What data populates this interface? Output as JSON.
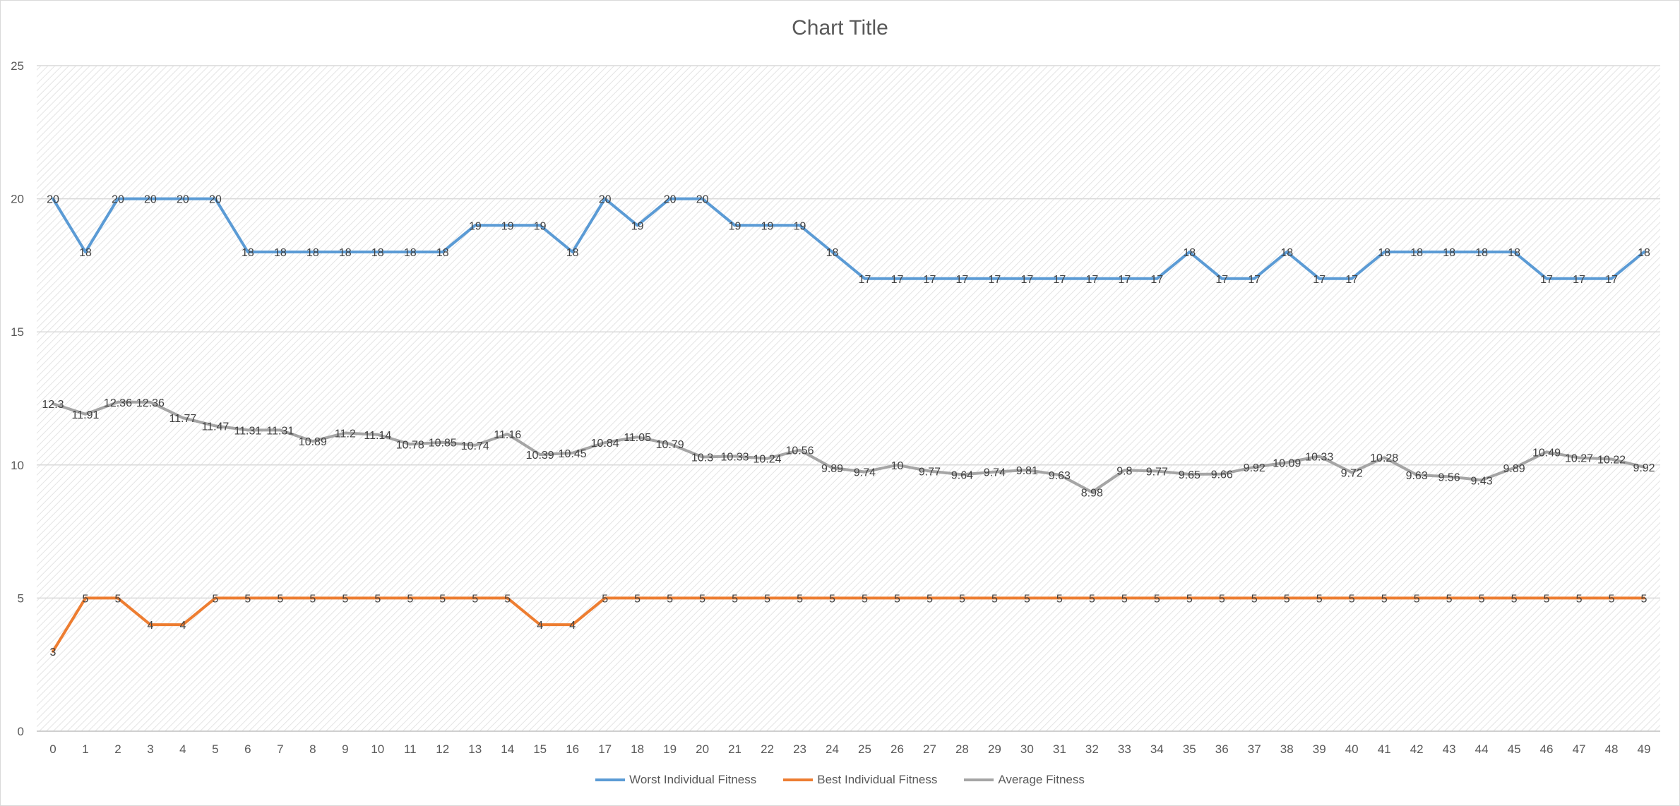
{
  "chart_data": {
    "type": "line",
    "title": "Chart Title",
    "xlabel": "",
    "ylabel": "",
    "ylim": [
      0,
      25
    ],
    "yticks": [
      0,
      5,
      10,
      15,
      20,
      25
    ],
    "grid": true,
    "legend_position": "bottom",
    "x": [
      0,
      1,
      2,
      3,
      4,
      5,
      6,
      7,
      8,
      9,
      10,
      11,
      12,
      13,
      14,
      15,
      16,
      17,
      18,
      19,
      20,
      21,
      22,
      23,
      24,
      25,
      26,
      27,
      28,
      29,
      30,
      31,
      32,
      33,
      34,
      35,
      36,
      37,
      38,
      39,
      40,
      41,
      42,
      43,
      44,
      45,
      46,
      47,
      48,
      49
    ],
    "series": [
      {
        "name": "Worst Individual Fitness",
        "color": "#5b9bd5",
        "values": [
          20,
          18,
          20,
          20,
          20,
          20,
          18,
          18,
          18,
          18,
          18,
          18,
          18,
          19,
          19,
          19,
          18,
          20,
          19,
          20,
          20,
          19,
          19,
          19,
          18,
          17,
          17,
          17,
          17,
          17,
          17,
          17,
          17,
          17,
          17,
          18,
          17,
          17,
          18,
          17,
          17,
          18,
          18,
          18,
          18,
          18,
          17,
          17,
          17,
          18
        ],
        "labels": [
          "20",
          "18",
          "20",
          "20",
          "20",
          "20",
          "18",
          "18",
          "18",
          "18",
          "18",
          "18",
          "18",
          "19",
          "19",
          "19",
          "18",
          "20",
          "19",
          "20",
          "20",
          "19",
          "19",
          "19",
          "18",
          "17",
          "17",
          "17",
          "17",
          "17",
          "17",
          "17",
          "17",
          "17",
          "17",
          "18",
          "17",
          "17",
          "18",
          "17",
          "17",
          "18",
          "18",
          "18",
          "18",
          "18",
          "17",
          "17",
          "17",
          "18"
        ]
      },
      {
        "name": "Best Individual Fitness",
        "color": "#ed7d31",
        "values": [
          3,
          5,
          5,
          4,
          4,
          5,
          5,
          5,
          5,
          5,
          5,
          5,
          5,
          5,
          5,
          4,
          4,
          5,
          5,
          5,
          5,
          5,
          5,
          5,
          5,
          5,
          5,
          5,
          5,
          5,
          5,
          5,
          5,
          5,
          5,
          5,
          5,
          5,
          5,
          5,
          5,
          5,
          5,
          5,
          5,
          5,
          5,
          5,
          5,
          5
        ],
        "labels": [
          "3",
          "5",
          "5",
          "4",
          "4",
          "5",
          "5",
          "5",
          "5",
          "5",
          "5",
          "5",
          "5",
          "5",
          "5",
          "4",
          "4",
          "5",
          "5",
          "5",
          "5",
          "5",
          "5",
          "5",
          "5",
          "5",
          "5",
          "5",
          "5",
          "5",
          "5",
          "5",
          "5",
          "5",
          "5",
          "5",
          "5",
          "5",
          "5",
          "5",
          "5",
          "5",
          "5",
          "5",
          "5",
          "5",
          "5",
          "5",
          "5",
          "5"
        ]
      },
      {
        "name": "Average Fitness",
        "color": "#a5a5a5",
        "values": [
          12.3,
          11.91,
          12.36,
          12.36,
          11.77,
          11.47,
          11.31,
          11.31,
          10.89,
          11.2,
          11.14,
          10.78,
          10.85,
          10.74,
          11.16,
          10.39,
          10.45,
          10.84,
          11.05,
          10.79,
          10.3,
          10.33,
          10.24,
          10.56,
          9.89,
          9.74,
          10,
          9.77,
          9.64,
          9.74,
          9.81,
          9.63,
          8.98,
          9.8,
          9.77,
          9.65,
          9.66,
          9.92,
          10.09,
          10.33,
          9.72,
          10.28,
          9.63,
          9.56,
          9.43,
          9.89,
          10.49,
          10.27,
          10.22,
          9.92
        ],
        "labels": [
          "12.3",
          "11.91",
          "12.36",
          "12.36",
          "11.77",
          "11.47",
          "11.31",
          "11.31",
          "10.89",
          "11.2",
          "11.14",
          "10.78",
          "10.85",
          "10.74",
          "11.16",
          "10.39",
          "10.45",
          "10.84",
          "11.05",
          "10.79",
          "10.3",
          "10.33",
          "10.24",
          "10.56",
          "9.89",
          "9.74",
          "10",
          "9.77",
          "9.64",
          "9.74",
          "9.81",
          "9.63",
          "8.98",
          "9.8",
          "9.77",
          "9.65",
          "9.66",
          "9.92",
          "10.09",
          "10.33",
          "9.72",
          "10.28",
          "9.63",
          "9.56",
          "9.43",
          "9.89",
          "10.49",
          "10.27",
          "10.22",
          "9.92"
        ]
      }
    ]
  }
}
